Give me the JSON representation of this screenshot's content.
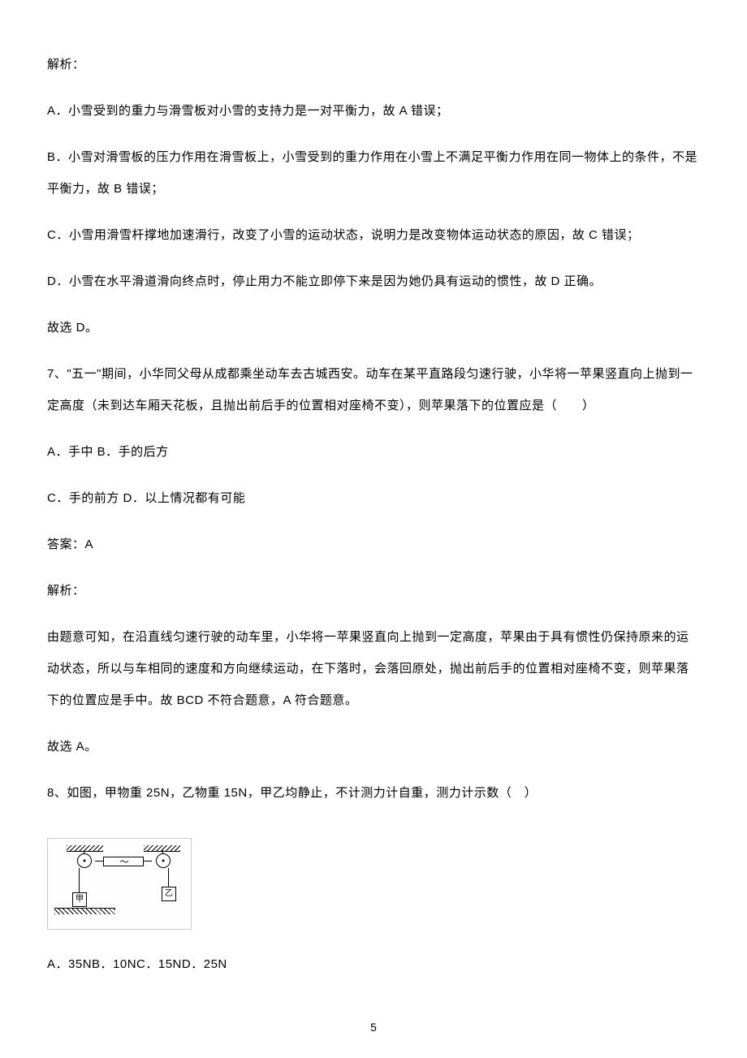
{
  "analysis_label": "解析：",
  "option_a": "A．小雪受到的重力与滑雪板对小雪的支持力是一对平衡力，故 A 错误；",
  "option_b": "B．小雪对滑雪板的压力作用在滑雪板上，小雪受到的重力作用在小雪上不满足平衡力作用在同一物体上的条件，不是平衡力，故 B 错误；",
  "option_c": "C．小雪用滑雪杆撑地加速滑行，改变了小雪的运动状态，说明力是改变物体运动状态的原因，故 C 错误；",
  "option_d": "D．小雪在水平滑道滑向终点时，停止用力不能立即停下来是因为她仍具有运动的惯性，故 D 正确。",
  "conclusion_6": "故选 D。",
  "question_7": "7、\"五一\"期间，小华同父母从成都乘坐动车去古城西安。动车在某平直路段匀速行驶，小华将一苹果竖直向上抛到一定高度（未到达车厢天花板，且抛出前后手的位置相对座椅不变），则苹果落下的位置应是（　　）",
  "q7_option_ab": "A．手中 B．手的后方",
  "q7_option_cd": "C．手的前方 D．以上情况都有可能",
  "q7_answer": "答案：A",
  "q7_analysis_label": "解析：",
  "q7_analysis_text": "由题意可知，在沿直线匀速行驶的动车里，小华将一苹果竖直向上抛到一定高度，苹果由于具有惯性仍保持原来的运动状态，所以与车相同的速度和方向继续运动，在下落时，会落回原处，抛出前后手的位置相对座椅不变，则苹果落下的位置应是手中。故 BCD 不符合题意，A 符合题意。",
  "q7_conclusion": "故选 A。",
  "question_8": "8、如图，甲物重 25N，乙物重 15N，甲乙均静止，不计测力计自重，测力计示数（　）",
  "diagram": {
    "box_jia_label": "甲",
    "box_yi_label": "乙"
  },
  "q8_options": "A．35NB．10NC．15ND．25N",
  "page_number": "5"
}
